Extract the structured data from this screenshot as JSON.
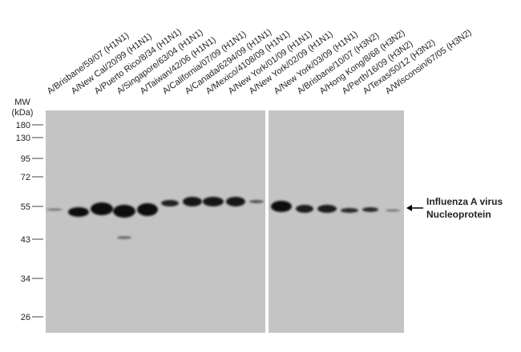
{
  "lanes": [
    "A/Brisbane/59/07 (H1N1)",
    "A/New Cal/20/99 (H1N1)",
    "A/Puerto Rico/8/34 (H1N1)",
    "A/Singapore/63/04 (H1N1)",
    "A/Taiwan/42/06 (H1N1)",
    "A/California/07/09 (H1N1)",
    "A/Canada/6294/09 (H1N1)",
    "A/Mexico/4108/09 (H1N1)",
    "A/New York/01/09 (H1N1)",
    "A/New York/02/09 (H1N1)",
    "A/New York/03/09 (H1N1)",
    "A/Brisbane/10/07 (H3N2)",
    "A/Hong Kong/8/68 (H3N2)",
    "A/Perth/16/09 (H3N2)",
    "A/Texas/50/12 (H3N2)",
    "A/Wisconsin/67/05 (H3N2)"
  ],
  "mw_label": [
    "MW",
    "(kDa)"
  ],
  "markers": [
    180,
    130,
    95,
    72,
    55,
    43,
    34,
    26
  ],
  "annotation": [
    "Influenza A virus",
    "Nucleoprotein"
  ]
}
